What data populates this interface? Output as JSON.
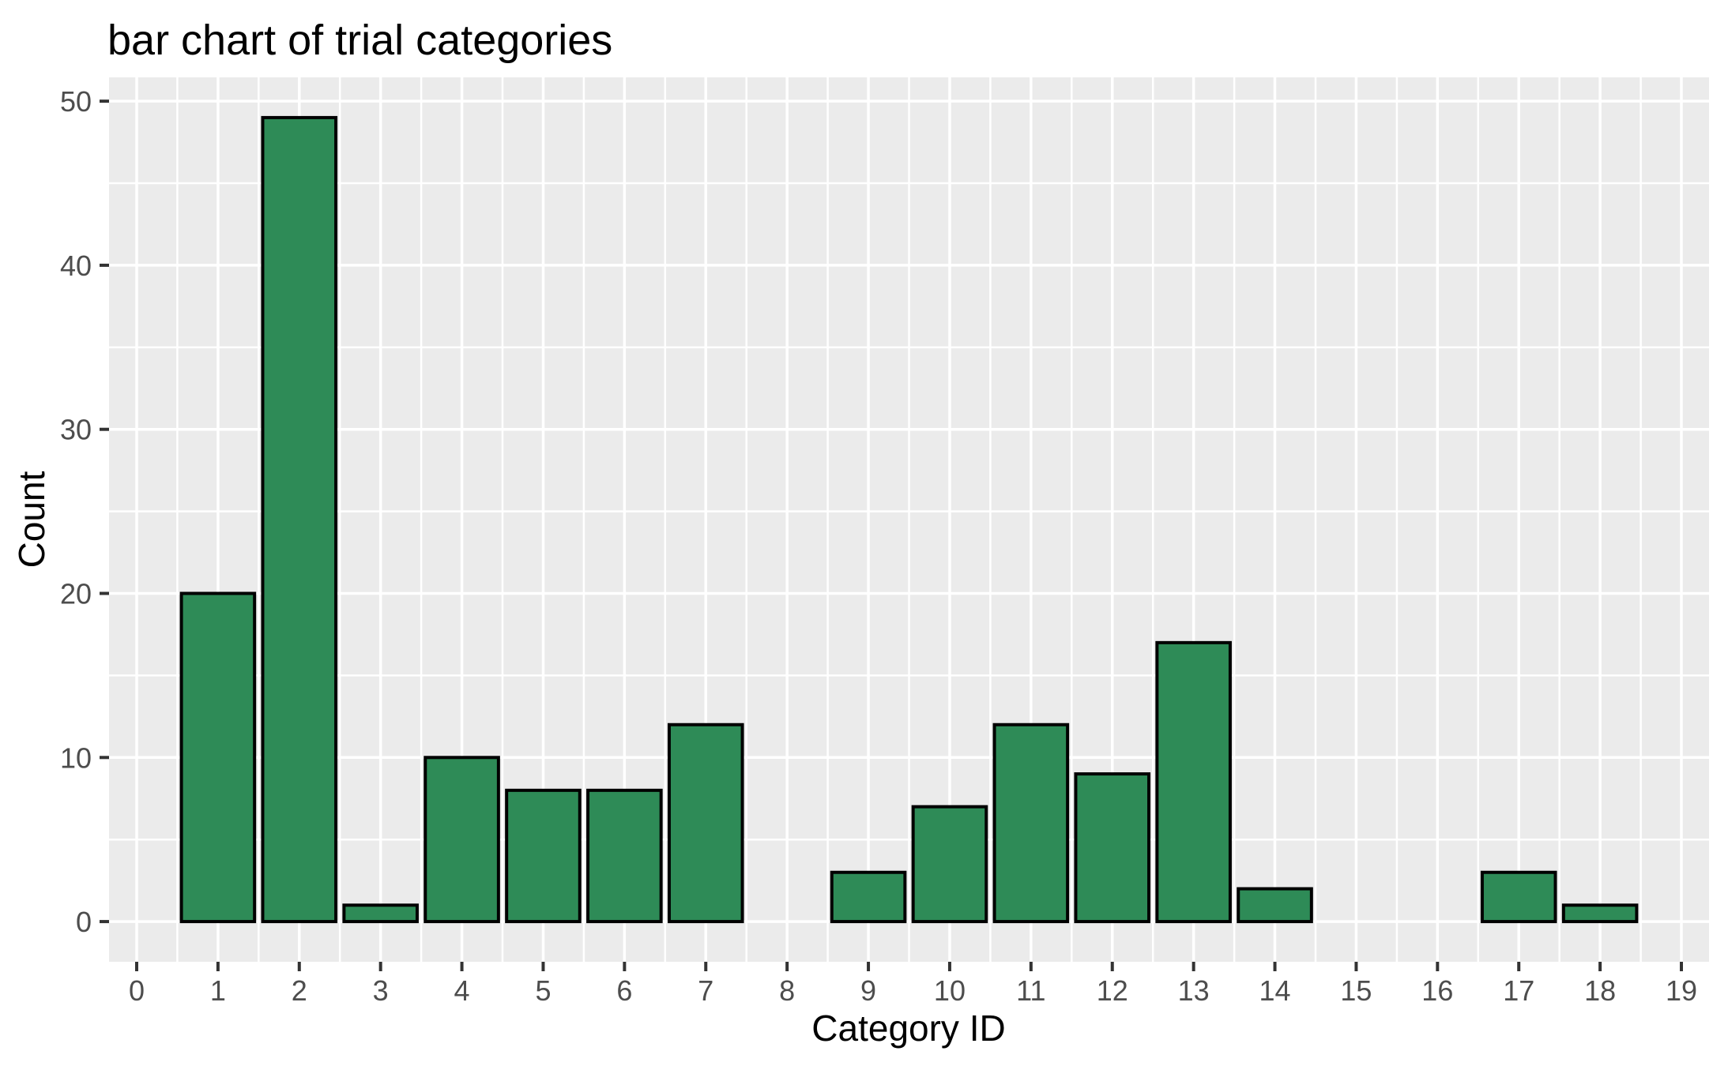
{
  "chart_data": {
    "type": "bar",
    "title": "bar chart of trial categories",
    "xlabel": "Category ID",
    "ylabel": "Count",
    "categories": [
      0,
      1,
      2,
      3,
      4,
      5,
      6,
      7,
      8,
      9,
      10,
      11,
      12,
      13,
      14,
      15,
      16,
      17,
      18,
      19
    ],
    "values": [
      0,
      20,
      49,
      1,
      10,
      8,
      8,
      12,
      0,
      3,
      7,
      12,
      9,
      17,
      2,
      0,
      0,
      3,
      1,
      0
    ],
    "x_ticks": [
      0,
      1,
      2,
      3,
      4,
      5,
      6,
      7,
      8,
      9,
      10,
      11,
      12,
      13,
      14,
      15,
      16,
      17,
      18,
      19
    ],
    "y_ticks": [
      0,
      10,
      20,
      30,
      40,
      50
    ],
    "xlim": [
      -0.34,
      19.34
    ],
    "ylim": [
      -2.45,
      51.45
    ],
    "bar_width": 0.9,
    "grid": {
      "major": true,
      "minor": true
    },
    "legend": "none",
    "style": {
      "bar_fill": "#2e8b57",
      "bar_stroke": "#000000",
      "panel_bg": "#ebebeb",
      "grid_color": "#ffffff",
      "tick_label_color": "#4d4d4d",
      "tick_mark_color": "#333333",
      "title_color": "#000000",
      "axis_title_color": "#000000",
      "background": "#ffffff"
    }
  }
}
